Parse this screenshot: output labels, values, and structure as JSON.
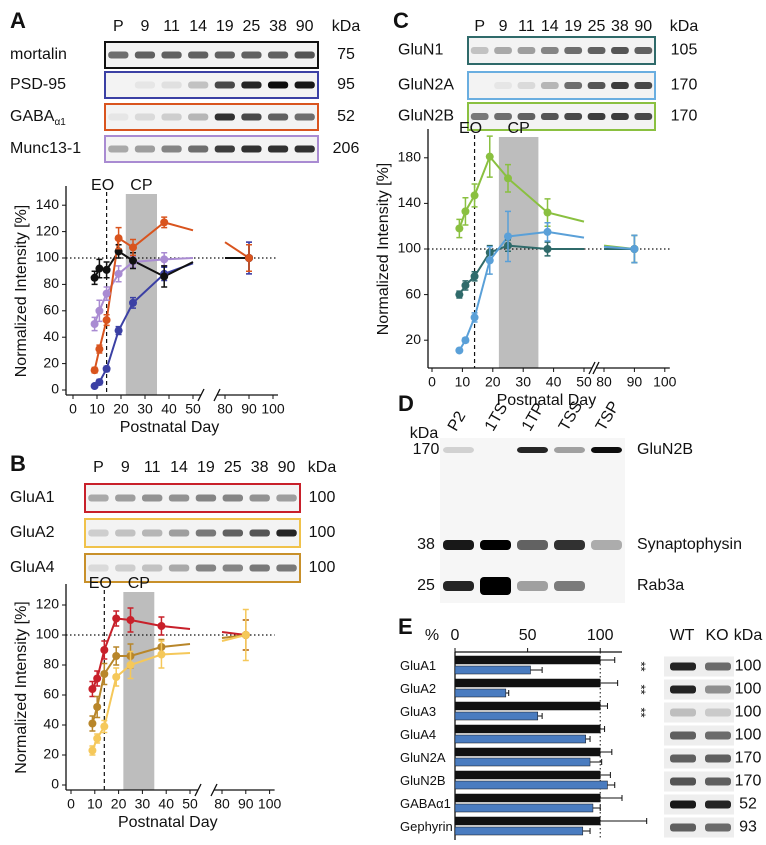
{
  "chart_data": [
    {
      "panel": "A",
      "type": "line",
      "blot": {
        "lanes": [
          "P",
          "9",
          "11",
          "14",
          "19",
          "25",
          "38",
          "90"
        ],
        "kda_header": "kDa",
        "rows": [
          {
            "label": "mortalin",
            "kda": "75",
            "color": "#111111"
          },
          {
            "label": "PSD-95",
            "kda": "95",
            "color": "#3b40a4"
          },
          {
            "label": "GABA",
            "sub": "α1",
            "kda": "52",
            "color": "#d9541e"
          },
          {
            "label": "Munc13-1",
            "kda": "206",
            "color": "#a98bd2"
          }
        ]
      },
      "x": [
        9,
        11,
        14,
        19,
        25,
        38,
        90
      ],
      "xlim": [
        0,
        100
      ],
      "x_break": [
        50,
        80
      ],
      "xticks": [
        0,
        10,
        20,
        30,
        40,
        50,
        80,
        90,
        100
      ],
      "ylim": [
        0,
        150
      ],
      "yticks": [
        0,
        20,
        40,
        60,
        80,
        100,
        120,
        140
      ],
      "xlabel": "Postnatal Day",
      "ylabel": "Normalized Intensity [%]",
      "reference_line": 100,
      "annotations": [
        {
          "text": "EO",
          "x": 14
        },
        {
          "text": "CP",
          "x_range": [
            22,
            35
          ]
        }
      ],
      "series": [
        {
          "color": "#a98bd2",
          "values": [
            50,
            60,
            73,
            88,
            97,
            99,
            100
          ],
          "errors": [
            5,
            8,
            5,
            6,
            4,
            5,
            12
          ],
          "break_values": [
            100,
            100
          ]
        },
        {
          "color": "#3b40a4",
          "values": [
            3,
            6,
            16,
            45,
            66,
            88,
            100
          ],
          "errors": [
            1,
            2,
            2,
            3,
            4,
            5,
            12
          ],
          "break_values": [
            96,
            100
          ]
        },
        {
          "color": "#111111",
          "values": [
            85,
            92,
            91,
            105,
            98,
            86,
            100
          ],
          "errors": [
            5,
            7,
            6,
            5,
            6,
            8,
            10
          ],
          "break_values": [
            97,
            100
          ]
        },
        {
          "color": "#d9541e",
          "values": [
            15,
            31,
            53,
            115,
            108,
            127,
            100
          ],
          "errors": [
            2,
            3,
            4,
            8,
            6,
            4,
            10
          ],
          "break_values": [
            121,
            112
          ]
        }
      ]
    },
    {
      "panel": "B",
      "type": "line",
      "blot": {
        "lanes": [
          "P",
          "9",
          "11",
          "14",
          "19",
          "25",
          "38",
          "90"
        ],
        "kda_header": "kDa",
        "rows": [
          {
            "label": "GluA1",
            "kda": "100",
            "color": "#c8202a"
          },
          {
            "label": "GluA2",
            "kda": "100",
            "color": "#f0c24a"
          },
          {
            "label": "GluA4",
            "kda": "100",
            "color": "#c8902a"
          }
        ]
      },
      "x": [
        9,
        11,
        14,
        19,
        25,
        38,
        90
      ],
      "xlim": [
        0,
        100
      ],
      "x_break": [
        50,
        80
      ],
      "xticks": [
        0,
        10,
        20,
        30,
        40,
        50,
        80,
        90,
        100
      ],
      "ylim": [
        0,
        130
      ],
      "yticks": [
        0,
        20,
        40,
        60,
        80,
        100,
        120
      ],
      "xlabel": "Postnatal Day",
      "ylabel": "Normalized Intensity [%]",
      "reference_line": 100,
      "annotations": [
        {
          "text": "EO",
          "x": 14
        },
        {
          "text": "CP",
          "x_range": [
            22,
            35
          ]
        }
      ],
      "series": [
        {
          "color": "#c8202a",
          "values": [
            64,
            71,
            90,
            111,
            110,
            106,
            100
          ],
          "errors": [
            5,
            5,
            6,
            5,
            8,
            6,
            10
          ],
          "break_values": [
            104,
            102
          ]
        },
        {
          "color": "#b8862a",
          "values": [
            41,
            52,
            74,
            86,
            86,
            92,
            100
          ],
          "errors": [
            5,
            7,
            7,
            6,
            8,
            5,
            10
          ],
          "break_values": [
            94,
            98
          ]
        },
        {
          "color": "#f5c85a",
          "values": [
            23,
            31,
            39,
            72,
            80,
            87,
            100
          ],
          "errors": [
            3,
            3,
            4,
            6,
            9,
            9,
            17
          ],
          "break_values": [
            88,
            96
          ]
        }
      ]
    },
    {
      "panel": "C",
      "type": "line",
      "blot": {
        "lanes": [
          "P",
          "9",
          "11",
          "14",
          "19",
          "25",
          "38",
          "90"
        ],
        "kda_header": "kDa",
        "rows": [
          {
            "label": "GluN1",
            "kda": "105",
            "color": "#2f6a6a"
          },
          {
            "label": "GluN2A",
            "kda": "170",
            "color": "#6aaee0"
          },
          {
            "label": "GluN2B",
            "kda": "170",
            "color": "#8ac040"
          }
        ]
      },
      "x": [
        9,
        11,
        14,
        19,
        25,
        38,
        90
      ],
      "xlim": [
        0,
        100
      ],
      "x_break": [
        50,
        80
      ],
      "xticks": [
        0,
        10,
        20,
        30,
        40,
        50,
        80,
        90,
        100
      ],
      "ylim": [
        0,
        200
      ],
      "yticks": [
        20,
        60,
        100,
        140,
        180
      ],
      "xlabel": "Postnatal Day",
      "ylabel": "Normalized Intensity [%]",
      "reference_line": 100,
      "annotations": [
        {
          "text": "EO",
          "x": 14
        },
        {
          "text": "CP",
          "x_range": [
            22,
            35
          ]
        }
      ],
      "series": [
        {
          "color": "#8ac040",
          "values": [
            118,
            133,
            147,
            181,
            162,
            132,
            100
          ],
          "errors": [
            8,
            12,
            10,
            18,
            12,
            12,
            12
          ],
          "break_values": [
            124,
            103
          ]
        },
        {
          "color": "#2f6a6a",
          "values": [
            60,
            68,
            76,
            97,
            103,
            100,
            100
          ],
          "errors": [
            3,
            4,
            4,
            6,
            5,
            6,
            12
          ],
          "break_values": [
            100,
            100
          ]
        },
        {
          "color": "#5aa0d8",
          "values": [
            11,
            20,
            40,
            90,
            111,
            115,
            100
          ],
          "errors": [
            1,
            2,
            4,
            12,
            22,
            8,
            12
          ],
          "break_values": [
            110,
            102
          ]
        }
      ]
    },
    {
      "panel": "E",
      "type": "hbar",
      "xlabel": "%",
      "categories": [
        "GluA1",
        "GluA2",
        "GluA3",
        "GluA4",
        "GluN2A",
        "GluN2B",
        "GABAα1",
        "Gephyrin"
      ],
      "xlim": [
        0,
        115
      ],
      "xticks": [
        0,
        50,
        100
      ],
      "reference_line": 100,
      "series": [
        {
          "name": "WT",
          "color": "#111111",
          "values": [
            100,
            100,
            100,
            100,
            100,
            100,
            100,
            100
          ],
          "errors": [
            10,
            12,
            5,
            3,
            8,
            7,
            15,
            32
          ]
        },
        {
          "name": "KO",
          "color": "#4a7cc0",
          "values": [
            52,
            35,
            57,
            90,
            93,
            105,
            95,
            88
          ],
          "errors": [
            8,
            2,
            3,
            3,
            8,
            5,
            5,
            5
          ]
        }
      ],
      "significance": [
        "**",
        "**",
        "**",
        null,
        null,
        null,
        null,
        null
      ],
      "blot": {
        "kda_header": "kDa",
        "kda": [
          "100",
          "100",
          "100",
          "100",
          "170",
          "170",
          "52",
          "93"
        ]
      }
    }
  ],
  "blot_d": {
    "panel": "D",
    "kda_header": "kDa",
    "lanes": [
      "P2",
      "1TS",
      "1TP",
      "TSS",
      "TSP"
    ],
    "rows": [
      {
        "kda": "170",
        "label": "GluN2B"
      },
      {
        "kda": "38",
        "label": "Synaptophysin"
      },
      {
        "kda": "25",
        "label": "Rab3a"
      }
    ]
  }
}
